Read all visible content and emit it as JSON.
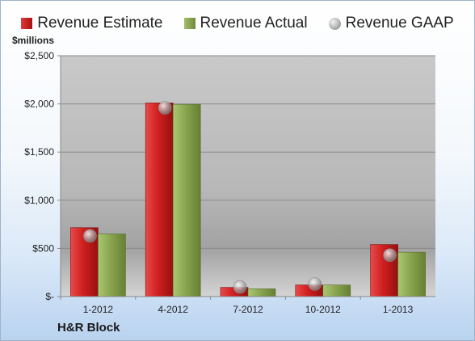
{
  "legend": {
    "estimate": "Revenue Estimate",
    "actual": "Revenue Actual",
    "gaap": "Revenue GAAP"
  },
  "ylabel": "$millions",
  "company": "H&R Block",
  "colors": {
    "estimate": "#c81e1e",
    "actual": "#8aa54f",
    "gaap": "#b0b0b0"
  },
  "chart_data": {
    "type": "bar",
    "categories": [
      "1-2012",
      "4-2012",
      "7-2012",
      "10-2012",
      "1-2013"
    ],
    "series": [
      {
        "name": "Revenue Estimate",
        "values": [
          715,
          2010,
          95,
          120,
          540
        ]
      },
      {
        "name": "Revenue Actual",
        "values": [
          650,
          1995,
          80,
          120,
          460
        ]
      },
      {
        "name": "Revenue GAAP",
        "values": [
          630,
          1960,
          100,
          130,
          430
        ]
      }
    ],
    "ylim": [
      0,
      2500
    ],
    "yticks": [
      0,
      500,
      1000,
      1500,
      2000,
      2500
    ],
    "ytick_labels": [
      "$-",
      "$500",
      "$1,000",
      "$1,500",
      "$2,000",
      "$2,500"
    ],
    "ylabel": "$millions",
    "grid": true,
    "legend": "top"
  }
}
